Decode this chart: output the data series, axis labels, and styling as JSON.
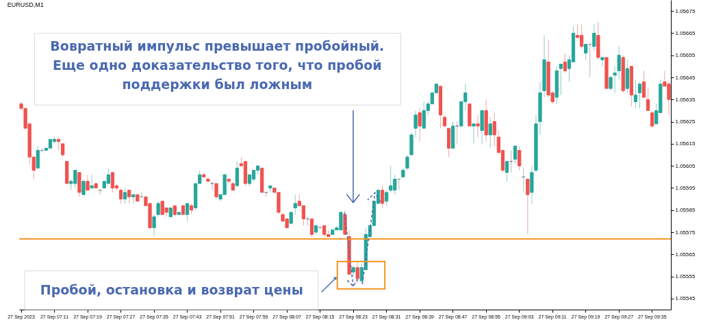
{
  "chart_data": {
    "type": "candlestick",
    "title": "EURUSD,M1",
    "annotations": [
      "Вовратный импульс превышает пробойный.\nЕще одно доказательство того, что пробой\nподдержки был ложным",
      "Пробой, остановка и возврат цены"
    ],
    "categories": [
      "27 Sep 2023",
      null,
      null,
      null,
      null,
      null,
      null,
      null,
      "27 Sep 07:11",
      null,
      null,
      null,
      null,
      null,
      null,
      null,
      "27 Sep 07:19",
      null,
      null,
      null,
      null,
      null,
      null,
      null,
      "27 Sep 07:27",
      null,
      null,
      null,
      null,
      null,
      null,
      null,
      "27 Sep 07:35",
      null,
      null,
      null,
      null,
      null,
      null,
      null,
      "27 Sep 07:43",
      null,
      null,
      null,
      null,
      null,
      null,
      null,
      "27 Sep 07:51",
      null,
      null,
      null,
      null,
      null,
      null,
      null,
      "27 Sep 07:59",
      null,
      null,
      null,
      null,
      null,
      null,
      null,
      "27 Sep 08:07",
      null,
      null,
      null,
      null,
      null,
      null,
      null,
      "27 Sep 08:15",
      null,
      null,
      null,
      null,
      null,
      null,
      null,
      "27 Sep 08:23",
      null,
      null,
      null,
      null,
      null,
      null,
      null,
      "27 Sep 08:31",
      null,
      null,
      null,
      null,
      null,
      null,
      null,
      "27 Sep 08:39",
      null,
      null,
      null,
      null,
      null,
      null,
      null,
      "27 Sep 08:47",
      null,
      null,
      null,
      null,
      null,
      null,
      null,
      "27 Sep 08:55",
      null,
      null,
      null,
      null,
      null,
      null,
      null,
      "27 Sep 09:03",
      null,
      null,
      null,
      null,
      null,
      null,
      null,
      "27 Sep 09:11",
      null,
      null,
      null,
      null,
      null,
      null,
      null,
      "27 Sep 09:19",
      null,
      null,
      null,
      null,
      null,
      null,
      null,
      "27 Sep 09:27",
      null,
      null,
      null,
      null,
      null,
      null,
      null,
      "27 Sep 09:35",
      null,
      null,
      null,
      null
    ],
    "ohlc": [
      [
        1.05633,
        1.05634,
        1.0563,
        1.05631
      ],
      [
        1.05631,
        1.05631,
        1.05622,
        1.05622
      ],
      [
        1.05624,
        1.05624,
        1.05606,
        1.05609
      ],
      [
        1.05609,
        1.05609,
        1.05599,
        1.05603
      ],
      [
        1.05604,
        1.05614,
        1.05604,
        1.05612
      ],
      [
        1.05612,
        1.05613,
        1.05611,
        1.05612
      ],
      [
        1.05612,
        1.05613,
        1.05612,
        1.05613
      ],
      [
        1.05613,
        1.05617,
        1.05613,
        1.05617
      ],
      [
        1.05616,
        1.05618,
        1.05615,
        1.05617
      ],
      [
        1.05617,
        1.05618,
        1.05612,
        1.05616
      ],
      [
        1.05615,
        1.05615,
        1.05609,
        1.0561
      ],
      [
        1.05607,
        1.05607,
        1.05597,
        1.05597
      ],
      [
        1.05597,
        1.05599,
        1.05594,
        1.05598
      ],
      [
        1.05597,
        1.05603,
        1.05595,
        1.05603
      ],
      [
        1.05602,
        1.05602,
        1.05591,
        1.05593
      ],
      [
        1.05592,
        1.05599,
        1.05592,
        1.05598
      ],
      [
        1.05598,
        1.05601,
        1.05594,
        1.05594
      ],
      [
        1.05595,
        1.05601,
        1.05595,
        1.05596
      ],
      [
        1.05597,
        1.05597,
        1.05595,
        1.05595
      ],
      [
        1.05594,
        1.05594,
        1.05592,
        1.05594
      ],
      [
        1.05595,
        1.05598,
        1.05595,
        1.05598
      ],
      [
        1.05597,
        1.05604,
        1.05597,
        1.05601
      ],
      [
        1.05602,
        1.05602,
        1.05593,
        1.05595
      ],
      [
        1.05596,
        1.05597,
        1.05594,
        1.05595
      ],
      [
        1.05594,
        1.05595,
        1.05588,
        1.0559
      ],
      [
        1.0559,
        1.05595,
        1.05588,
        1.05593
      ],
      [
        1.05594,
        1.05594,
        1.05588,
        1.05591
      ],
      [
        1.05591,
        1.05592,
        1.05588,
        1.05592
      ],
      [
        1.05592,
        1.05592,
        1.05589,
        1.05589
      ],
      [
        1.05591,
        1.05593,
        1.05591,
        1.05591
      ],
      [
        1.05591,
        1.05591,
        1.05587,
        1.05587
      ],
      [
        1.05588,
        1.05588,
        1.05576,
        1.05577
      ],
      [
        1.05577,
        1.05583,
        1.05573,
        1.05582
      ],
      [
        1.05583,
        1.05589,
        1.05582,
        1.05588
      ],
      [
        1.05589,
        1.05589,
        1.05583,
        1.05583
      ],
      [
        1.05586,
        1.05586,
        1.05582,
        1.05584
      ],
      [
        1.05582,
        1.05586,
        1.05582,
        1.05586
      ],
      [
        1.05587,
        1.05587,
        1.05582,
        1.05583
      ],
      [
        1.05583,
        1.05584,
        1.05583,
        1.05584
      ],
      [
        1.05587,
        1.05587,
        1.05583,
        1.05583
      ],
      [
        1.05583,
        1.05588,
        1.0558,
        1.05588
      ],
      [
        1.05587,
        1.05588,
        1.05583,
        1.05585
      ],
      [
        1.05586,
        1.05597,
        1.05585,
        1.05597
      ],
      [
        1.05597,
        1.05603,
        1.05597,
        1.05601
      ],
      [
        1.05601,
        1.05602,
        1.056,
        1.056
      ],
      [
        1.05599,
        1.056,
        1.05598,
        1.05598
      ],
      [
        1.05597,
        1.05598,
        1.05594,
        1.05597
      ],
      [
        1.05597,
        1.05597,
        1.0559,
        1.05591
      ],
      [
        1.0559,
        1.05592,
        1.05589,
        1.05592
      ],
      [
        1.05592,
        1.05601,
        1.05592,
        1.05601
      ],
      [
        1.05599,
        1.05599,
        1.05597,
        1.05598
      ],
      [
        1.05597,
        1.05598,
        1.05594,
        1.05594
      ],
      [
        1.05596,
        1.05607,
        1.05596,
        1.05604
      ],
      [
        1.05606,
        1.05609,
        1.05605,
        1.05605
      ],
      [
        1.05607,
        1.05607,
        1.05596,
        1.05597
      ],
      [
        1.05597,
        1.05601,
        1.05596,
        1.05601
      ],
      [
        1.05599,
        1.05603,
        1.05598,
        1.05603
      ],
      [
        1.05603,
        1.05605,
        1.05601,
        1.05605
      ],
      [
        1.05604,
        1.05604,
        1.05593,
        1.05593
      ],
      [
        1.05593,
        1.05593,
        1.05591,
        1.05593
      ],
      [
        1.05595,
        1.05596,
        1.05593,
        1.05596
      ],
      [
        1.05595,
        1.05595,
        1.05593,
        1.05593
      ],
      [
        1.05593,
        1.05593,
        1.05583,
        1.05584
      ],
      [
        1.05583,
        1.05584,
        1.0558,
        1.0558
      ],
      [
        1.05581,
        1.05581,
        1.05577,
        1.05577
      ],
      [
        1.05579,
        1.05584,
        1.05579,
        1.05584
      ],
      [
        1.05586,
        1.05592,
        1.05583,
        1.05588
      ],
      [
        1.05589,
        1.05592,
        1.05587,
        1.05587
      ],
      [
        1.05587,
        1.05587,
        1.05578,
        1.05581
      ],
      [
        1.05581,
        1.05582,
        1.05578,
        1.05581
      ],
      [
        1.05581,
        1.05581,
        1.05573,
        1.05574
      ],
      [
        1.05575,
        1.05578,
        1.05574,
        1.05578
      ],
      [
        1.05577,
        1.05578,
        1.05577,
        1.05577
      ],
      [
        1.05578,
        1.05578,
        1.05573,
        1.05574
      ],
      [
        1.05574,
        1.05576,
        1.05573,
        1.05573
      ],
      [
        1.05574,
        1.05576,
        1.05574,
        1.05576
      ],
      [
        1.05576,
        1.05578,
        1.05576,
        1.05577
      ],
      [
        1.05576,
        1.05584,
        1.05576,
        1.05584
      ],
      [
        1.05583,
        1.05585,
        1.05574,
        1.05574
      ],
      [
        1.05573,
        1.05576,
        1.05556,
        1.05556
      ],
      [
        1.05557,
        1.0556,
        1.05555,
        1.05559
      ],
      [
        1.05559,
        1.05562,
        1.05552,
        1.05554
      ],
      [
        1.05553,
        1.05561,
        1.05552,
        1.05559
      ],
      [
        1.05558,
        1.05577,
        1.05558,
        1.05574
      ],
      [
        1.05573,
        1.05578,
        1.05573,
        1.05578
      ],
      [
        1.05578,
        1.05589,
        1.05578,
        1.05589
      ],
      [
        1.05588,
        1.05594,
        1.05588,
        1.05594
      ],
      [
        1.05594,
        1.05596,
        1.05586,
        1.05588
      ],
      [
        1.05589,
        1.05594,
        1.05587,
        1.05593
      ],
      [
        1.05594,
        1.05605,
        1.05593,
        1.05596
      ],
      [
        1.05594,
        1.05601,
        1.05592,
        1.05599
      ],
      [
        1.05599,
        1.05599,
        1.05594,
        1.05599
      ],
      [
        1.056,
        1.05604,
        1.056,
        1.05603
      ],
      [
        1.05604,
        1.0561,
        1.05603,
        1.05609
      ],
      [
        1.0561,
        1.0562,
        1.0561,
        1.05619
      ],
      [
        1.05622,
        1.0563,
        1.05618,
        1.05628
      ],
      [
        1.05629,
        1.05631,
        1.05616,
        1.05623
      ],
      [
        1.05622,
        1.05634,
        1.05622,
        1.0563
      ],
      [
        1.0563,
        1.05634,
        1.05628,
        1.05633
      ],
      [
        1.05633,
        1.05638,
        1.05633,
        1.05638
      ],
      [
        1.05638,
        1.05642,
        1.05638,
        1.05642
      ],
      [
        1.05641,
        1.05641,
        1.05622,
        1.05628
      ],
      [
        1.05627,
        1.05628,
        1.05623,
        1.05623
      ],
      [
        1.05622,
        1.05622,
        1.05609,
        1.05613
      ],
      [
        1.05613,
        1.05625,
        1.05613,
        1.05623
      ],
      [
        1.05623,
        1.05625,
        1.05615,
        1.05623
      ],
      [
        1.05623,
        1.05634,
        1.05623,
        1.05634
      ],
      [
        1.05634,
        1.05642,
        1.0563,
        1.05638
      ],
      [
        1.05633,
        1.05633,
        1.05623,
        1.05623
      ],
      [
        1.05623,
        1.05624,
        1.05615,
        1.05624
      ],
      [
        1.05624,
        1.05628,
        1.05618,
        1.05623
      ],
      [
        1.05621,
        1.0563,
        1.05615,
        1.0563
      ],
      [
        1.0563,
        1.05635,
        1.05616,
        1.05619
      ],
      [
        1.05619,
        1.05627,
        1.05613,
        1.05624
      ],
      [
        1.05625,
        1.05629,
        1.05614,
        1.05619
      ],
      [
        1.05618,
        1.05621,
        1.05611,
        1.05611
      ],
      [
        1.05612,
        1.05612,
        1.05602,
        1.05603
      ],
      [
        1.05602,
        1.05607,
        1.05598,
        1.05607
      ],
      [
        1.05607,
        1.05612,
        1.05602,
        1.05607
      ],
      [
        1.05608,
        1.05614,
        1.05606,
        1.05614
      ],
      [
        1.05612,
        1.05614,
        1.05603,
        1.05605
      ],
      [
        1.056,
        1.05604,
        1.05593,
        1.056
      ],
      [
        1.05599,
        1.05599,
        1.05574,
        1.05592
      ],
      [
        1.05593,
        1.05605,
        1.05588,
        1.05602
      ],
      [
        1.05603,
        1.05628,
        1.05602,
        1.05624
      ],
      [
        1.05625,
        1.05643,
        1.05619,
        1.05638
      ],
      [
        1.05639,
        1.05664,
        1.05636,
        1.05653
      ],
      [
        1.05652,
        1.05662,
        1.05636,
        1.05637
      ],
      [
        1.05638,
        1.05639,
        1.05633,
        1.05634
      ],
      [
        1.05636,
        1.0565,
        1.05633,
        1.05648
      ],
      [
        1.05649,
        1.05651,
        1.05637,
        1.05651
      ],
      [
        1.05652,
        1.05656,
        1.05647,
        1.05648
      ],
      [
        1.05649,
        1.05655,
        1.05643,
        1.05653
      ],
      [
        1.05652,
        1.05668,
        1.05652,
        1.05665
      ],
      [
        1.05664,
        1.05669,
        1.05663,
        1.05663
      ],
      [
        1.05664,
        1.05669,
        1.05658,
        1.05659
      ],
      [
        1.05656,
        1.0566,
        1.05653,
        1.0566
      ],
      [
        1.0566,
        1.0566,
        1.05645,
        1.0566
      ],
      [
        1.05659,
        1.05669,
        1.05657,
        1.05665
      ],
      [
        1.05664,
        1.0567,
        1.05653,
        1.05654
      ],
      [
        1.05653,
        1.05654,
        1.0565,
        1.05654
      ],
      [
        1.05654,
        1.05654,
        1.0564,
        1.0564
      ],
      [
        1.0564,
        1.05646,
        1.05639,
        1.05645
      ],
      [
        1.05646,
        1.0565,
        1.05638,
        1.05647
      ],
      [
        1.05648,
        1.05659,
        1.05644,
        1.05655
      ],
      [
        1.05654,
        1.05655,
        1.05638,
        1.05639
      ],
      [
        1.0564,
        1.05653,
        1.05638,
        1.05649
      ],
      [
        1.0565,
        1.0565,
        1.05632,
        1.05637
      ],
      [
        1.05634,
        1.05644,
        1.05631,
        1.05637
      ],
      [
        1.05638,
        1.05643,
        1.05631,
        1.05642
      ],
      [
        1.05643,
        1.05648,
        1.05636,
        1.05636
      ],
      [
        1.05635,
        1.0564,
        1.0563,
        1.0563
      ],
      [
        1.05629,
        1.0563,
        1.05622,
        1.05623
      ],
      [
        1.05624,
        1.05633,
        1.05624,
        1.0563
      ],
      [
        1.05629,
        1.05644,
        1.05629,
        1.05642
      ],
      [
        1.05643,
        1.05648,
        1.05641,
        1.05641
      ],
      [
        1.05642,
        1.05643,
        1.05628,
        1.05635
      ]
    ],
    "colors": [
      "#ef5350",
      "#ef5350",
      "#ef5350",
      "#ef5350",
      "#26a69a",
      "#808080",
      "#26a69a",
      "#26a69a",
      "#26a69a",
      "#ef5350",
      "#ef5350",
      "#ef5350",
      "#26a69a",
      "#26a69a",
      "#ef5350",
      "#26a69a",
      "#ef5350",
      "#26a69a",
      "#ef5350",
      "#808080",
      "#26a69a",
      "#26a69a",
      "#ef5350",
      "#ef5350",
      "#ef5350",
      "#26a69a",
      "#ef5350",
      "#26a69a",
      "#ef5350",
      "#808080",
      "#ef5350",
      "#ef5350",
      "#26a69a",
      "#26a69a",
      "#ef5350",
      "#ef5350",
      "#26a69a",
      "#ef5350",
      "#26a69a",
      "#ef5350",
      "#26a69a",
      "#ef5350",
      "#26a69a",
      "#26a69a",
      "#ef5350",
      "#ef5350",
      "#808080",
      "#ef5350",
      "#26a69a",
      "#26a69a",
      "#ef5350",
      "#ef5350",
      "#26a69a",
      "#ef5350",
      "#ef5350",
      "#26a69a",
      "#26a69a",
      "#26a69a",
      "#ef5350",
      "#808080",
      "#26a69a",
      "#ef5350",
      "#ef5350",
      "#ef5350",
      "#ef5350",
      "#26a69a",
      "#26a69a",
      "#ef5350",
      "#ef5350",
      "#808080",
      "#ef5350",
      "#26a69a",
      "#808080",
      "#ef5350",
      "#ef5350",
      "#26a69a",
      "#26a69a",
      "#26a69a",
      "#ef5350",
      "#ef5350",
      "#26a69a",
      "#ef5350",
      "#26a69a",
      "#26a69a",
      "#26a69a",
      "#26a69a",
      "#26a69a",
      "#ef5350",
      "#26a69a",
      "#26a69a",
      "#26a69a",
      "#808080",
      "#26a69a",
      "#26a69a",
      "#26a69a",
      "#26a69a",
      "#ef5350",
      "#26a69a",
      "#26a69a",
      "#26a69a",
      "#26a69a",
      "#ef5350",
      "#ef5350",
      "#ef5350",
      "#26a69a",
      "#808080",
      "#26a69a",
      "#26a69a",
      "#ef5350",
      "#26a69a",
      "#ef5350",
      "#26a69a",
      "#ef5350",
      "#26a69a",
      "#ef5350",
      "#ef5350",
      "#ef5350",
      "#26a69a",
      "#808080",
      "#26a69a",
      "#ef5350",
      "#808080",
      "#ef5350",
      "#26a69a",
      "#26a69a",
      "#26a69a",
      "#26a69a",
      "#ef5350",
      "#ef5350",
      "#26a69a",
      "#26a69a",
      "#ef5350",
      "#26a69a",
      "#26a69a",
      "#ef5350",
      "#ef5350",
      "#26a69a",
      "#808080",
      "#26a69a",
      "#ef5350",
      "#26a69a",
      "#ef5350",
      "#26a69a",
      "#26a69a",
      "#26a69a",
      "#ef5350",
      "#26a69a",
      "#ef5350",
      "#26a69a",
      "#26a69a",
      "#ef5350",
      "#ef5350",
      "#ef5350",
      "#26a69a",
      "#26a69a",
      "#ef5350",
      "#ef5350"
    ],
    "ylim": [
      1.0554,
      1.0568
    ],
    "yticks": [
      1.05545,
      1.05555,
      1.05565,
      1.05575,
      1.05585,
      1.05595,
      1.05605,
      1.05615,
      1.05625,
      1.05635,
      1.05645,
      1.05655,
      1.05665,
      1.05675
    ],
    "ref_lines": [
      {
        "axis": "y",
        "value": 1.05572,
        "color": "#f7931e"
      }
    ]
  }
}
